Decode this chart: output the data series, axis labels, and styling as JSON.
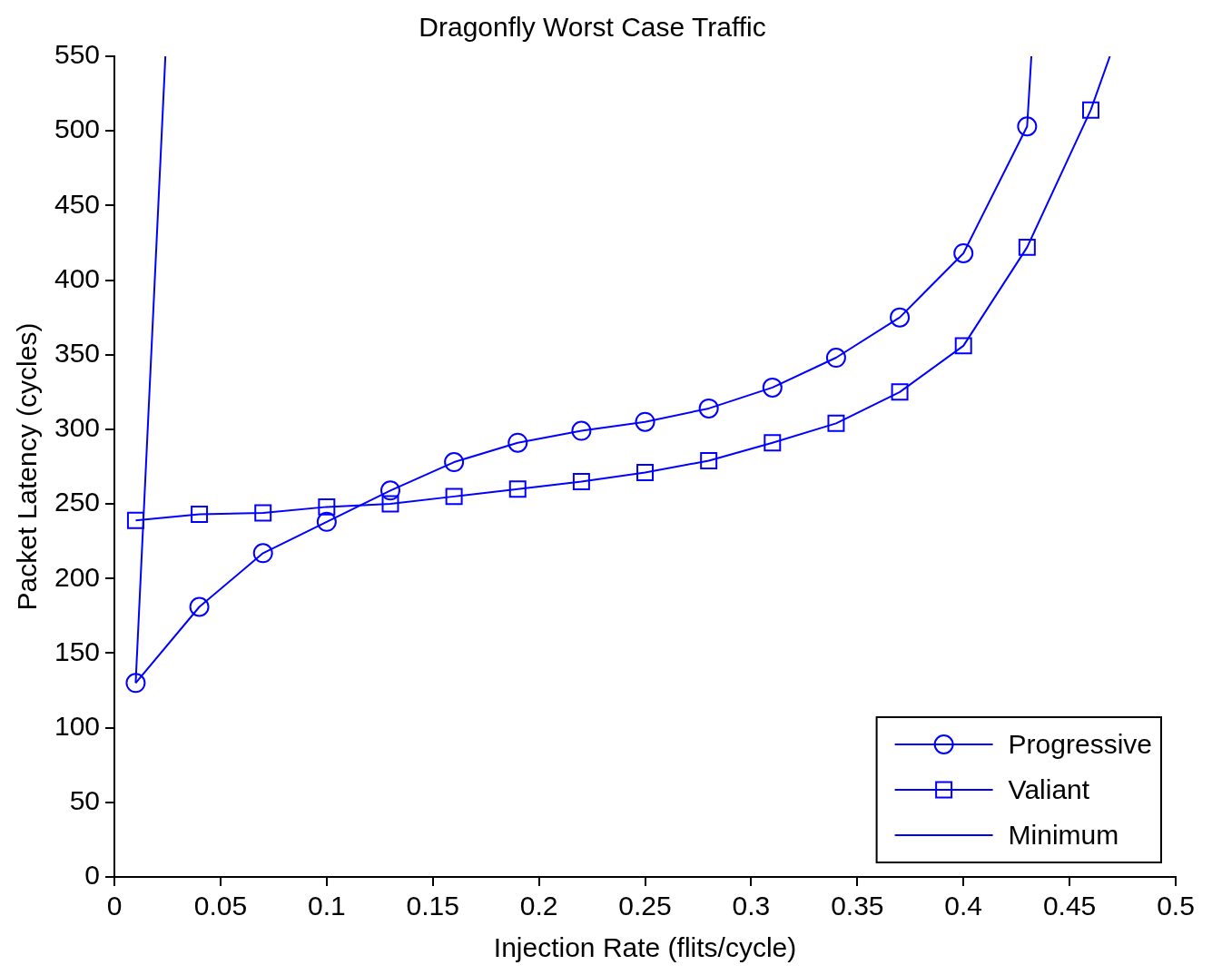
{
  "chart_data": {
    "type": "line",
    "title": "Dragonfly Worst Case Traffic",
    "xlabel": "Injection Rate (flits/cycle)",
    "ylabel": "Packet Latency (cycles)",
    "xlim": [
      0,
      0.5
    ],
    "xticks": [
      0,
      0.05,
      0.1,
      0.15,
      0.2,
      0.25,
      0.3,
      0.35,
      0.4,
      0.45,
      0.5
    ],
    "ylim": [
      0,
      550
    ],
    "yticks": [
      0,
      50,
      100,
      150,
      200,
      250,
      300,
      350,
      400,
      450,
      500,
      550
    ],
    "grid": false,
    "legend": "bottom right",
    "series": [
      {
        "name": "Progressive",
        "color": "#0000ff",
        "marker": "circle",
        "x": [
          0.01,
          0.04,
          0.07,
          0.1,
          0.13,
          0.16,
          0.19,
          0.22,
          0.25,
          0.28,
          0.31,
          0.34,
          0.37,
          0.4,
          0.43,
          0.432
        ],
        "values": [
          130,
          181,
          217,
          238,
          259,
          278,
          291,
          299,
          305,
          314,
          328,
          348,
          375,
          418,
          503,
          550
        ]
      },
      {
        "name": "Valiant",
        "color": "#0000ff",
        "marker": "square",
        "x": [
          0.01,
          0.04,
          0.07,
          0.1,
          0.13,
          0.16,
          0.19,
          0.22,
          0.25,
          0.28,
          0.31,
          0.34,
          0.37,
          0.4,
          0.43,
          0.46,
          0.469
        ],
        "values": [
          239,
          243,
          244,
          248,
          250,
          255,
          260,
          265,
          271,
          279,
          291,
          304,
          325,
          356,
          422,
          514,
          550
        ]
      },
      {
        "name": "Minimum",
        "color": "#0000ff",
        "marker": "none",
        "x": [
          0.01,
          0.024
        ],
        "values": [
          130,
          550
        ]
      }
    ]
  }
}
